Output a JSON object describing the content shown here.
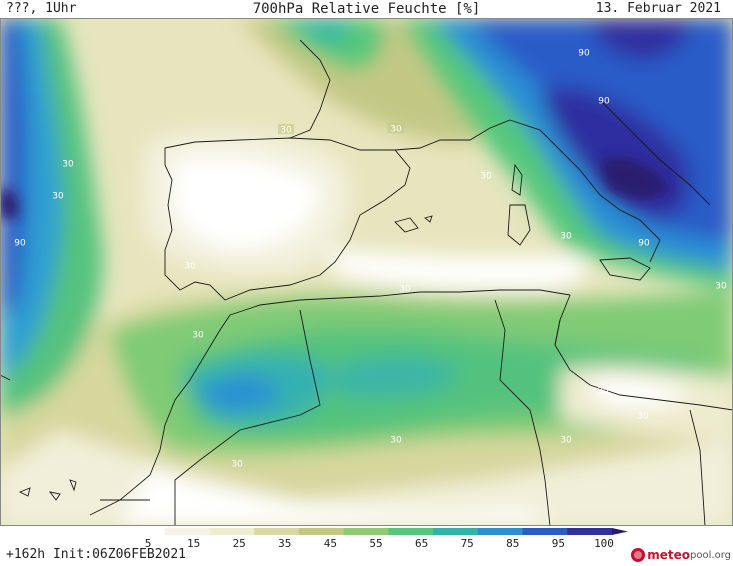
{
  "header": {
    "left": "???, 1Uhr",
    "title": "700hPa Relative Feuchte [%]",
    "date": "13. Februar 2021"
  },
  "footer": {
    "run_info": "+162h Init:06Z06FEB2021",
    "logo_brand": "meteo",
    "logo_suffix": "pool.org"
  },
  "colorbar": {
    "ticks": [
      "5",
      "15",
      "25",
      "35",
      "45",
      "55",
      "65",
      "75",
      "85",
      "95",
      "100"
    ],
    "colors": [
      "#ffffff",
      "#f7f4e6",
      "#eeeccf",
      "#d9d8a4",
      "#c2c884",
      "#8fca72",
      "#55c77c",
      "#2fb5a8",
      "#2a8fd4",
      "#2a5cc8",
      "#2f2fa0",
      "#2a1a6e"
    ]
  },
  "contour_labels": [
    "30",
    "90"
  ]
}
